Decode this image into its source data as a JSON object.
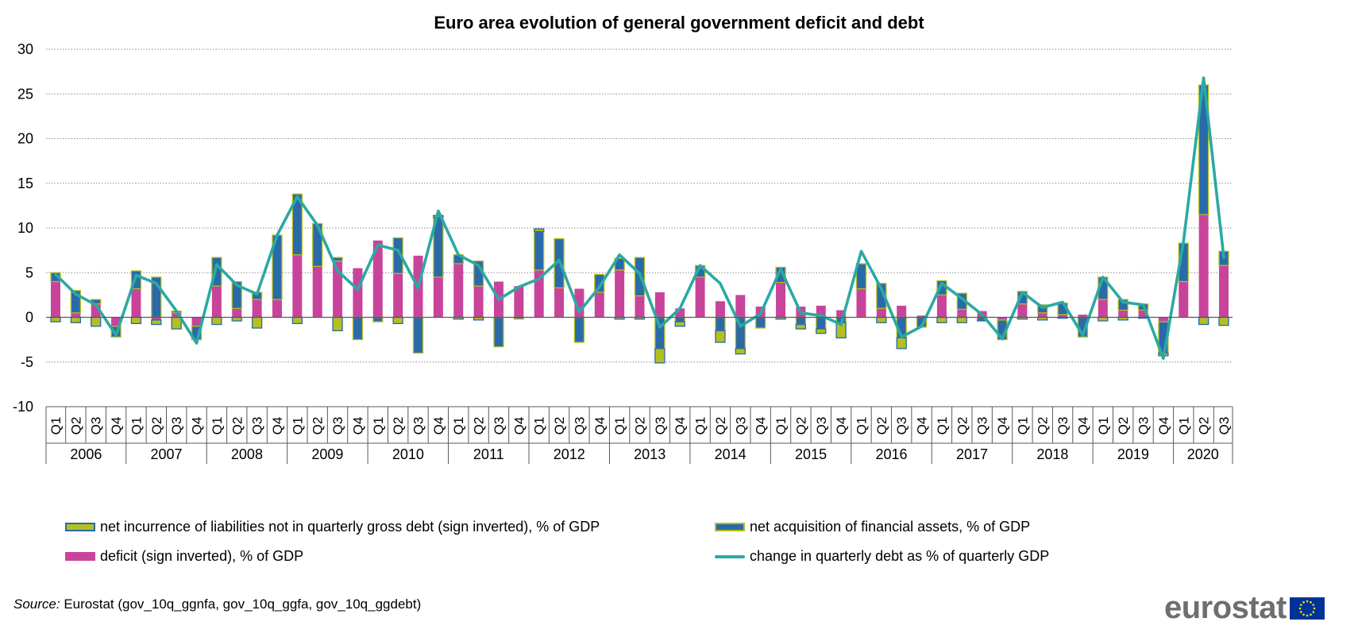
{
  "colors": {
    "liabilities": "#B5BF1E",
    "assets": "#2A6AA8",
    "deficit": "#C8449B",
    "debt_line": "#2BA9A4",
    "grid": "#8C8C8C",
    "logo_text": "#6D6E70",
    "eu_flag": "#003399",
    "eu_stars": "#FFDD00"
  },
  "chart_data": {
    "type": "bar",
    "title": "Euro area evolution of general government deficit and debt",
    "ylim": [
      -10,
      30
    ],
    "yticks": [
      -10,
      -5,
      0,
      5,
      10,
      15,
      20,
      25,
      30
    ],
    "grid": "horizontal dotted",
    "quarters": [
      "Q1",
      "Q2",
      "Q3",
      "Q4"
    ],
    "years": [
      "2006",
      "2007",
      "2008",
      "2009",
      "2010",
      "2011",
      "2012",
      "2013",
      "2014",
      "2015",
      "2016",
      "2017",
      "2018",
      "2019",
      "2020"
    ],
    "categories": [
      "2006 Q1",
      "2006 Q2",
      "2006 Q3",
      "2006 Q4",
      "2007 Q1",
      "2007 Q2",
      "2007 Q3",
      "2007 Q4",
      "2008 Q1",
      "2008 Q2",
      "2008 Q3",
      "2008 Q4",
      "2009 Q1",
      "2009 Q2",
      "2009 Q3",
      "2009 Q4",
      "2010 Q1",
      "2010 Q2",
      "2010 Q3",
      "2010 Q4",
      "2011 Q1",
      "2011 Q2",
      "2011 Q3",
      "2011 Q4",
      "2012 Q1",
      "2012 Q2",
      "2012 Q3",
      "2012 Q4",
      "2013 Q1",
      "2013 Q2",
      "2013 Q3",
      "2013 Q4",
      "2014 Q1",
      "2014 Q2",
      "2014 Q3",
      "2014 Q4",
      "2015 Q1",
      "2015 Q2",
      "2015 Q3",
      "2015 Q4",
      "2016 Q1",
      "2016 Q2",
      "2016 Q3",
      "2016 Q4",
      "2017 Q1",
      "2017 Q2",
      "2017 Q3",
      "2017 Q4",
      "2018 Q1",
      "2018 Q2",
      "2018 Q3",
      "2018 Q4",
      "2019 Q1",
      "2019 Q2",
      "2019 Q3",
      "2019 Q4",
      "2020 Q1",
      "2020 Q2",
      "2020 Q3"
    ],
    "legend_position": "bottom",
    "series": [
      {
        "name": "deficit (sign inverted), % of GDP",
        "kind": "bar",
        "color": "#C8449B",
        "values": [
          4.0,
          0.5,
          1.5,
          -1.0,
          3.2,
          -0.3,
          0.5,
          -1.0,
          3.5,
          1.0,
          2.0,
          2.0,
          7.0,
          5.7,
          6.3,
          5.5,
          8.6,
          4.9,
          6.9,
          4.5,
          6.0,
          3.5,
          4.0,
          3.5,
          5.3,
          3.3,
          3.2,
          2.8,
          5.3,
          2.4,
          2.8,
          1.0,
          4.5,
          1.8,
          2.5,
          1.2,
          3.9,
          1.2,
          1.3,
          0.8,
          3.2,
          1.0,
          1.3,
          0.2,
          2.5,
          0.9,
          0.7,
          -0.3,
          1.5,
          0.5,
          0.3,
          0.3,
          2.0,
          0.8,
          0.8,
          -0.5,
          4.0,
          11.5,
          5.8
        ]
      },
      {
        "name": "net acquisition of financial assets, % of GDP",
        "kind": "bar",
        "color": "#2A6AA8",
        "values": [
          1.0,
          2.5,
          0.5,
          -1.2,
          2.0,
          4.5,
          0.2,
          -1.5,
          3.2,
          3.0,
          0.8,
          7.2,
          6.8,
          4.8,
          0.4,
          -2.5,
          -0.5,
          4.0,
          -4.0,
          6.7,
          1.0,
          2.8,
          -3.3,
          -0.2,
          4.3,
          5.5,
          -2.8,
          2.0,
          1.3,
          4.3,
          -3.5,
          -0.5,
          1.3,
          -1.5,
          -3.5,
          -1.2,
          1.7,
          -0.8,
          -1.3,
          -0.6,
          2.8,
          2.8,
          -2.3,
          -1.1,
          1.6,
          1.8,
          -0.3,
          -2.2,
          1.4,
          0.9,
          1.3,
          -2.2,
          2.5,
          1.2,
          0.7,
          -3.5,
          4.3,
          14.5,
          1.6
        ]
      },
      {
        "name": "net incurrence of liabilities not in quarterly gross debt (sign inverted), % of GDP",
        "kind": "bar",
        "color": "#B5BF1E",
        "values": [
          -0.5,
          -0.6,
          -1.0,
          0.0,
          -0.7,
          -0.5,
          -1.3,
          0.0,
          -0.8,
          -0.4,
          -1.2,
          0.0,
          -0.7,
          0.0,
          -1.5,
          0.0,
          0.0,
          -0.7,
          0.0,
          0.2,
          -0.2,
          -0.3,
          0.0,
          0.0,
          0.3,
          0.0,
          0.0,
          0.0,
          -0.2,
          -0.2,
          -1.6,
          -0.5,
          0.0,
          -1.3,
          -0.6,
          0.0,
          -0.2,
          -0.5,
          -0.5,
          -1.7,
          0.0,
          -0.6,
          -1.2,
          0.0,
          -0.6,
          -0.6,
          -0.1,
          0.0,
          -0.2,
          -0.3,
          -0.1,
          0.0,
          -0.4,
          -0.3,
          -0.1,
          -0.3,
          0.0,
          -0.8,
          -0.9
        ]
      },
      {
        "name": "change in quarterly debt as % of quarterly GDP",
        "kind": "line",
        "color": "#2BA9A4",
        "values": [
          4.8,
          2.6,
          1.4,
          -2.0,
          4.7,
          3.8,
          0.7,
          -2.9,
          5.9,
          3.6,
          2.6,
          9.2,
          13.5,
          10.3,
          5.2,
          3.1,
          8.1,
          7.5,
          3.3,
          11.9,
          7.0,
          5.8,
          2.0,
          3.4,
          4.3,
          6.4,
          0.6,
          3.4,
          7.0,
          4.9,
          -1.1,
          1.0,
          5.8,
          3.8,
          -1.0,
          0.4,
          5.4,
          0.5,
          0.2,
          -0.8,
          7.4,
          3.2,
          -2.2,
          -1.0,
          3.8,
          2.1,
          0.3,
          -2.4,
          2.8,
          1.1,
          1.7,
          -2.0,
          4.5,
          1.7,
          1.4,
          -4.6,
          8.5,
          26.8,
          6.7
        ]
      }
    ]
  },
  "legend": {
    "liabilities": "net incurrence of liabilities not in quarterly gross debt (sign inverted), % of GDP",
    "assets": "net acquisition of financial assets, % of GDP",
    "deficit": "deficit (sign inverted), % of GDP",
    "debt_line": "change in quarterly debt as % of quarterly GDP"
  },
  "source": {
    "label": "Source:",
    "text": " Eurostat (gov_10q_ggnfa, gov_10q_ggfa, gov_10q_ggdebt)"
  },
  "logo": {
    "text": "eurostat",
    "icon": "eu-flag-icon"
  }
}
